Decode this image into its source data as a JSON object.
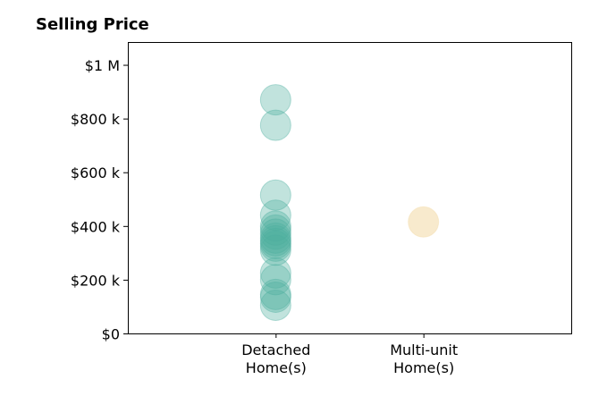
{
  "chart_data": {
    "type": "scatter",
    "title": "Selling Price",
    "xlabel": "",
    "ylabel": "",
    "categories": [
      "Detached\nHome(s)",
      "Multi-unit\nHome(s)"
    ],
    "ylim": [
      0,
      1085000
    ],
    "xlim": [
      0,
      3
    ],
    "y_ticks": [
      {
        "value": 0,
        "label": "$0"
      },
      {
        "value": 200000,
        "label": "$200 k"
      },
      {
        "value": 400000,
        "label": "$400 k"
      },
      {
        "value": 600000,
        "label": "$600 k"
      },
      {
        "value": 800000,
        "label": "$800 k"
      },
      {
        "value": 1000000,
        "label": "$1 M"
      }
    ],
    "grid": false,
    "series": [
      {
        "category": "Detached\nHome(s)",
        "color": "#4daf9f",
        "values": [
          870000,
          775000,
          515000,
          440000,
          400000,
          385000,
          370000,
          355000,
          345000,
          335000,
          325000,
          310000,
          225000,
          200000,
          145000,
          135000,
          105000
        ]
      },
      {
        "category": "Multi-unit\nHome(s)",
        "color": "#f3d9a4",
        "values": [
          415000
        ]
      }
    ]
  }
}
